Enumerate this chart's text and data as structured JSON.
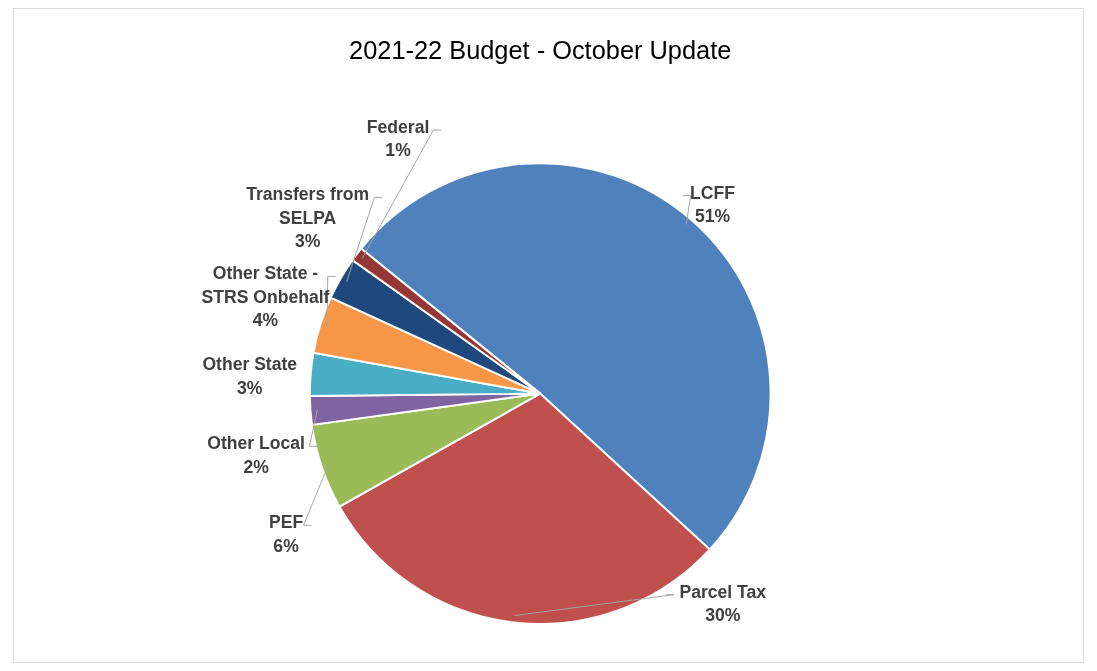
{
  "chart_data": {
    "type": "pie",
    "title": "2021-22 Budget - October Update",
    "categories": [
      "LCFF",
      "Parcel Tax",
      "PEF",
      "Other Local",
      "Other State",
      "Other State - STRS Onbehalf",
      "Transfers from SELPA",
      "Federal"
    ],
    "values": [
      51,
      30,
      6,
      2,
      3,
      4,
      3,
      1
    ],
    "colors": [
      "#4f81bd",
      "#c0504d",
      "#9bbb59",
      "#8064a2",
      "#4bacc6",
      "#f79646",
      "#1f497d",
      "#953735"
    ],
    "value_labels": [
      "51%",
      "30%",
      "6%",
      "2%",
      "3%",
      "4%",
      "3%",
      "1%"
    ]
  }
}
